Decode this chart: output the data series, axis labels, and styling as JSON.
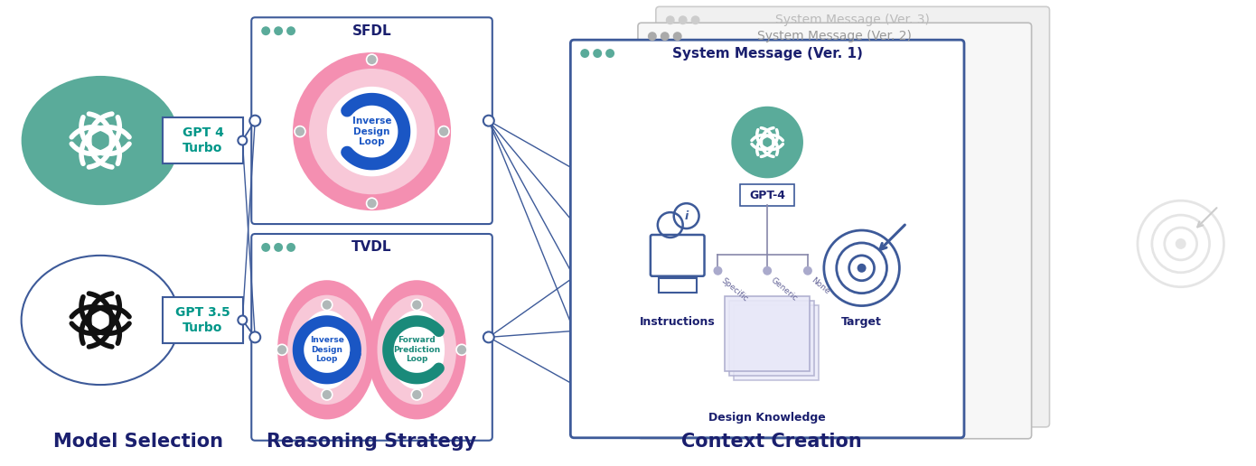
{
  "bg_color": "#ffffff",
  "section_labels": [
    "Model Selection",
    "Reasoning Strategy",
    "Context Creation"
  ],
  "section_label_color": "#1a1f6e",
  "gpt4_label": "GPT 4\nTurbo",
  "gpt35_label": "GPT 3.5\nTurbo",
  "model_label_color": "#009688",
  "gpt4_circle_color": "#5aab9a",
  "connector_color": "#3d5a99",
  "sfdl_label": "SFDL",
  "tvdl_label": "TVDL",
  "strategy_label_color": "#1a1f6e",
  "pink_outer": "#f48fb1",
  "pink_inner": "#f8c8d8",
  "blue_loop": "#1a56c4",
  "teal_loop": "#1a8a7a",
  "sys_msg_v1": "System Message (Ver. 1)",
  "sys_msg_v2": "System Message (Ver. 2)",
  "sys_msg_v3": "System Message (Ver. 3)",
  "sys_msg_v1_color": "#1a1f6e",
  "gpt4_inner_label": "GPT-4",
  "instructions_label": "Instructions",
  "target_label": "Target",
  "design_knowledge_label": "Design Knowledge",
  "inv_design_loop_text": "Inverse\nDesign\nLoop",
  "fwd_pred_loop_text": "Forward\nPrediction\nLoop",
  "dot_green": "#5aab9a",
  "dot_gray_mid": "#aaaaaa",
  "dot_gray_light": "#cccccc"
}
